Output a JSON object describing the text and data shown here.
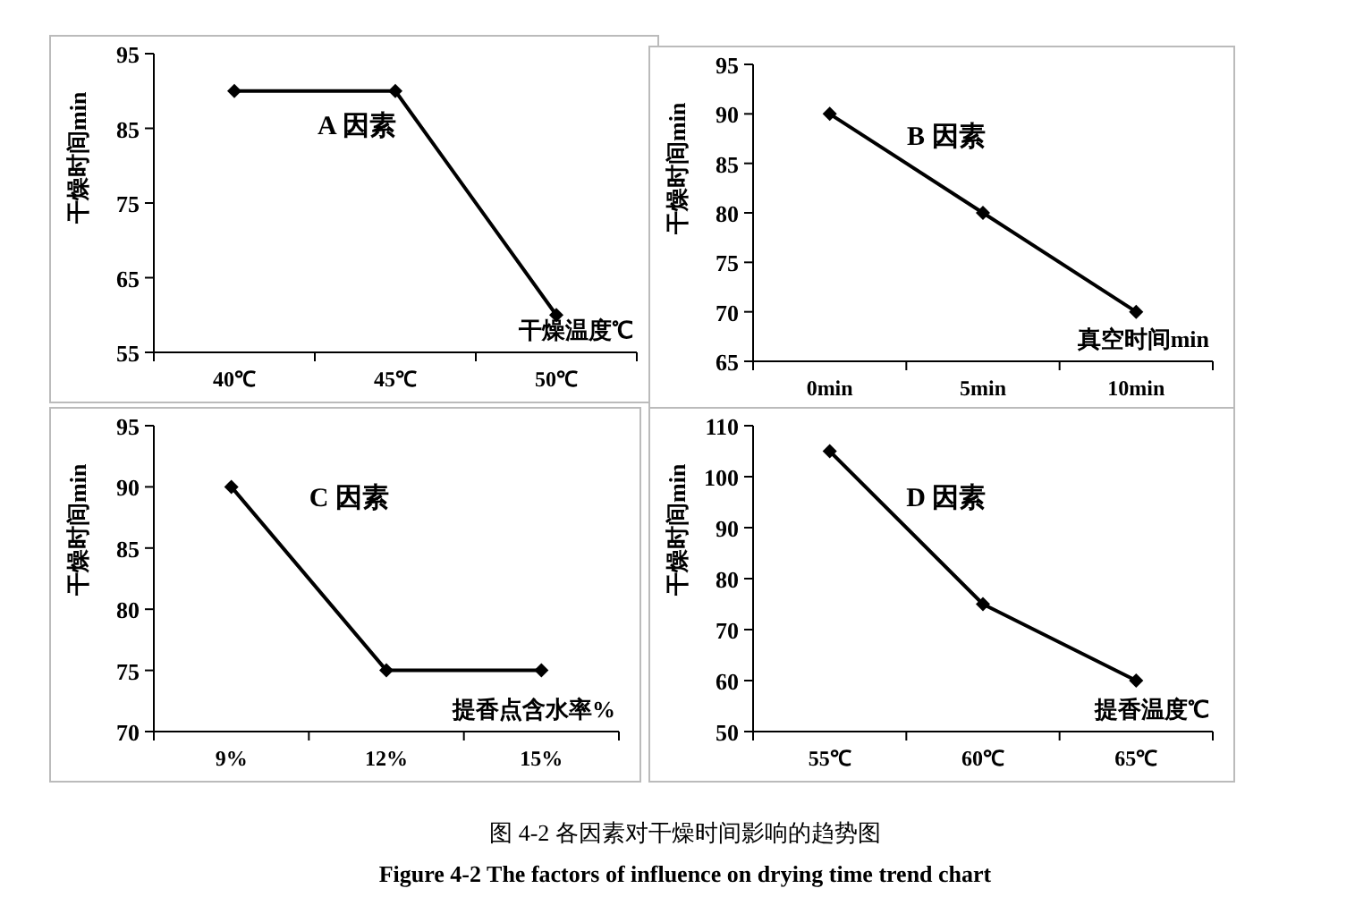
{
  "chart_data": [
    {
      "type": "line",
      "title": "A 因素",
      "xlabel": "干燥温度℃",
      "ylabel": "干燥时间min",
      "categories": [
        "40℃",
        "45℃",
        "50℃"
      ],
      "values": [
        90,
        90,
        60
      ],
      "color": "#000000",
      "marker": "diamond",
      "ylim": [
        55,
        95
      ],
      "yticks": [
        55,
        65,
        75,
        85,
        95
      ]
    },
    {
      "type": "line",
      "title": "B 因素",
      "xlabel": "真空时间min",
      "ylabel": "干燥时间min",
      "categories": [
        "0min",
        "5min",
        "10min"
      ],
      "values": [
        90,
        80,
        70
      ],
      "color": "#000000",
      "marker": "diamond",
      "ylim": [
        65,
        95
      ],
      "yticks": [
        65,
        70,
        75,
        80,
        85,
        90,
        95
      ]
    },
    {
      "type": "line",
      "title": "C 因素",
      "xlabel": "提香点含水率%",
      "ylabel": "干燥时间min",
      "categories": [
        "9%",
        "12%",
        "15%"
      ],
      "values": [
        90,
        75,
        75
      ],
      "color": "#000000",
      "marker": "diamond",
      "ylim": [
        70,
        95
      ],
      "yticks": [
        70,
        75,
        80,
        85,
        90,
        95
      ]
    },
    {
      "type": "line",
      "title": "D 因素",
      "xlabel": "提香温度℃",
      "ylabel": "干燥时间min",
      "categories": [
        "55℃",
        "60℃",
        "65℃"
      ],
      "values": [
        105,
        75,
        60
      ],
      "color": "#000000",
      "marker": "diamond",
      "ylim": [
        50,
        110
      ],
      "yticks": [
        50,
        60,
        70,
        80,
        90,
        100,
        110
      ],
      "annotations": [
        "图 4-2 各因素对干燥时间影响的趋势图",
        "Figure 4-2 The factors of influence on drying time trend chart"
      ]
    }
  ]
}
